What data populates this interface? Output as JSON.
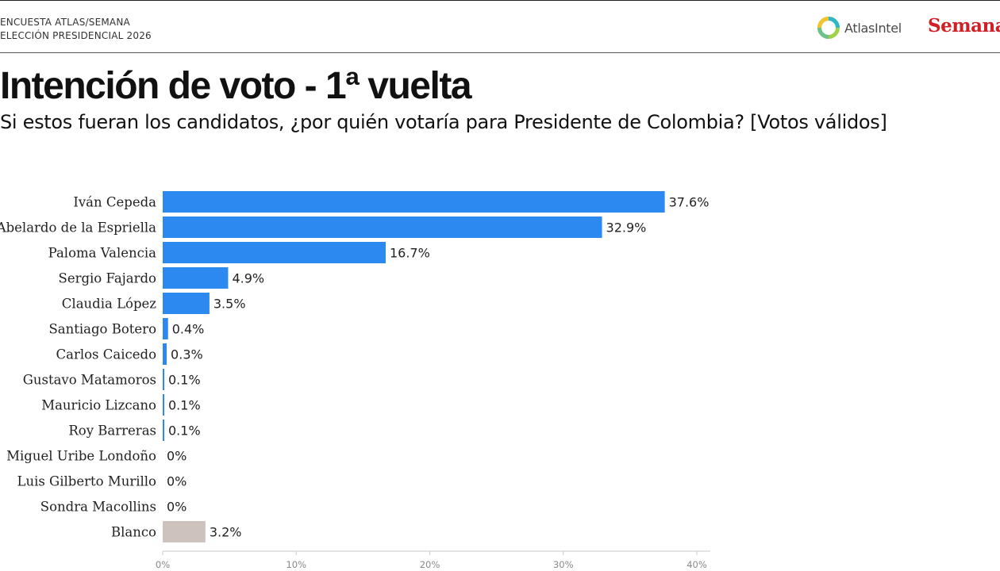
{
  "header": {
    "kicker_line1": "ENCUESTA ATLAS/SEMANA",
    "kicker_line2": "ELECCIÓN PRESIDENCIAL 2026",
    "logo_atlas": "AtlasIntel",
    "logo_semana": "Semana"
  },
  "colors": {
    "bar": "#2b89f0",
    "bar_blanco": "#cdc2bd",
    "logo_red": "#d21f26"
  },
  "chart_data": {
    "type": "bar",
    "orientation": "horizontal",
    "title": "Intención de voto - 1ª vuelta",
    "subtitle": "Si estos fueran los candidatos, ¿por quién votaría para Presidente de Colombia? [Votos válidos]",
    "categories": [
      "Iván Cepeda",
      "Abelardo de la Espriella",
      "Paloma Valencia",
      "Sergio Fajardo",
      "Claudia López",
      "Santiago Botero",
      "Carlos Caicedo",
      "Gustavo Matamoros",
      "Mauricio Lizcano",
      "Roy Barreras",
      "Miguel Uribe Londoño",
      "Luis Gilberto Murillo",
      "Sondra Macollins",
      "Blanco"
    ],
    "values": [
      37.6,
      32.9,
      16.7,
      4.9,
      3.5,
      0.4,
      0.3,
      0.1,
      0.1,
      0.1,
      0,
      0,
      0,
      3.2
    ],
    "value_labels": [
      "37.6%",
      "32.9%",
      "16.7%",
      "4.9%",
      "3.5%",
      "0.4%",
      "0.3%",
      "0.1%",
      "0.1%",
      "0.1%",
      "0%",
      "0%",
      "0%",
      "3.2%"
    ],
    "xlim": [
      0,
      40
    ],
    "xticks": [
      0,
      10,
      20,
      30,
      40
    ],
    "xtick_labels": [
      "0%",
      "10%",
      "20%",
      "30%",
      "40%"
    ],
    "grid": false,
    "legend": "none"
  }
}
